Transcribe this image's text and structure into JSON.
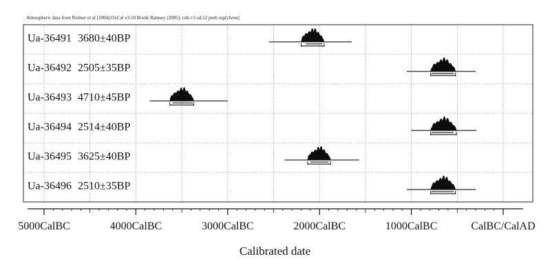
{
  "chart_data": {
    "type": "scatter",
    "subtype": "radiocarbon calibration multiplot",
    "header_note": "Atmospheric data from Reimer et al (2004);OxCal v3.10 Bronk Ramsey (2005); cub r:5 sd:12 prob usp[chron]",
    "xlabel": "Calibrated date",
    "x_tick_labels": [
      "5000CalBC",
      "4000CalBC",
      "3000CalBC",
      "2000CalBC",
      "1000CalBC",
      "CalBC/CalAD"
    ],
    "x_ticks": [
      -5000,
      -4000,
      -3000,
      -2000,
      -1000,
      0
    ],
    "xlim": [
      -5200,
      350
    ],
    "grid": true,
    "samples": [
      {
        "lab_id": "Ua-36491",
        "date_label": "3680±40BP",
        "range_68": [
          -2150,
          -1970
        ],
        "range_95": [
          -2200,
          -1950
        ],
        "range_total": [
          -2550,
          -1650
        ],
        "peak": -2070
      },
      {
        "lab_id": "Ua-36492",
        "date_label": "2505±35BP",
        "range_68": [
          -780,
          -540
        ],
        "range_95": [
          -790,
          -520
        ],
        "range_total": [
          -1050,
          -300
        ],
        "peak": -620
      },
      {
        "lab_id": "Ua-36493",
        "date_label": "4710±45BP",
        "range_68": [
          -3600,
          -3380
        ],
        "range_95": [
          -3630,
          -3370
        ],
        "range_total": [
          -3850,
          -3000
        ],
        "peak": -3480
      },
      {
        "lab_id": "Ua-36494",
        "date_label": "2514±40BP",
        "range_68": [
          -780,
          -540
        ],
        "range_95": [
          -790,
          -510
        ],
        "range_total": [
          -1000,
          -290
        ],
        "peak": -620
      },
      {
        "lab_id": "Ua-36495",
        "date_label": "3625±40BP",
        "range_68": [
          -2100,
          -1900
        ],
        "range_95": [
          -2130,
          -1880
        ],
        "range_total": [
          -2380,
          -1570
        ],
        "peak": -1970
      },
      {
        "lab_id": "Ua-36496",
        "date_label": "2510±35BP",
        "range_68": [
          -780,
          -540
        ],
        "range_95": [
          -790,
          -520
        ],
        "range_total": [
          -1050,
          -300
        ],
        "peak": -620
      }
    ]
  }
}
